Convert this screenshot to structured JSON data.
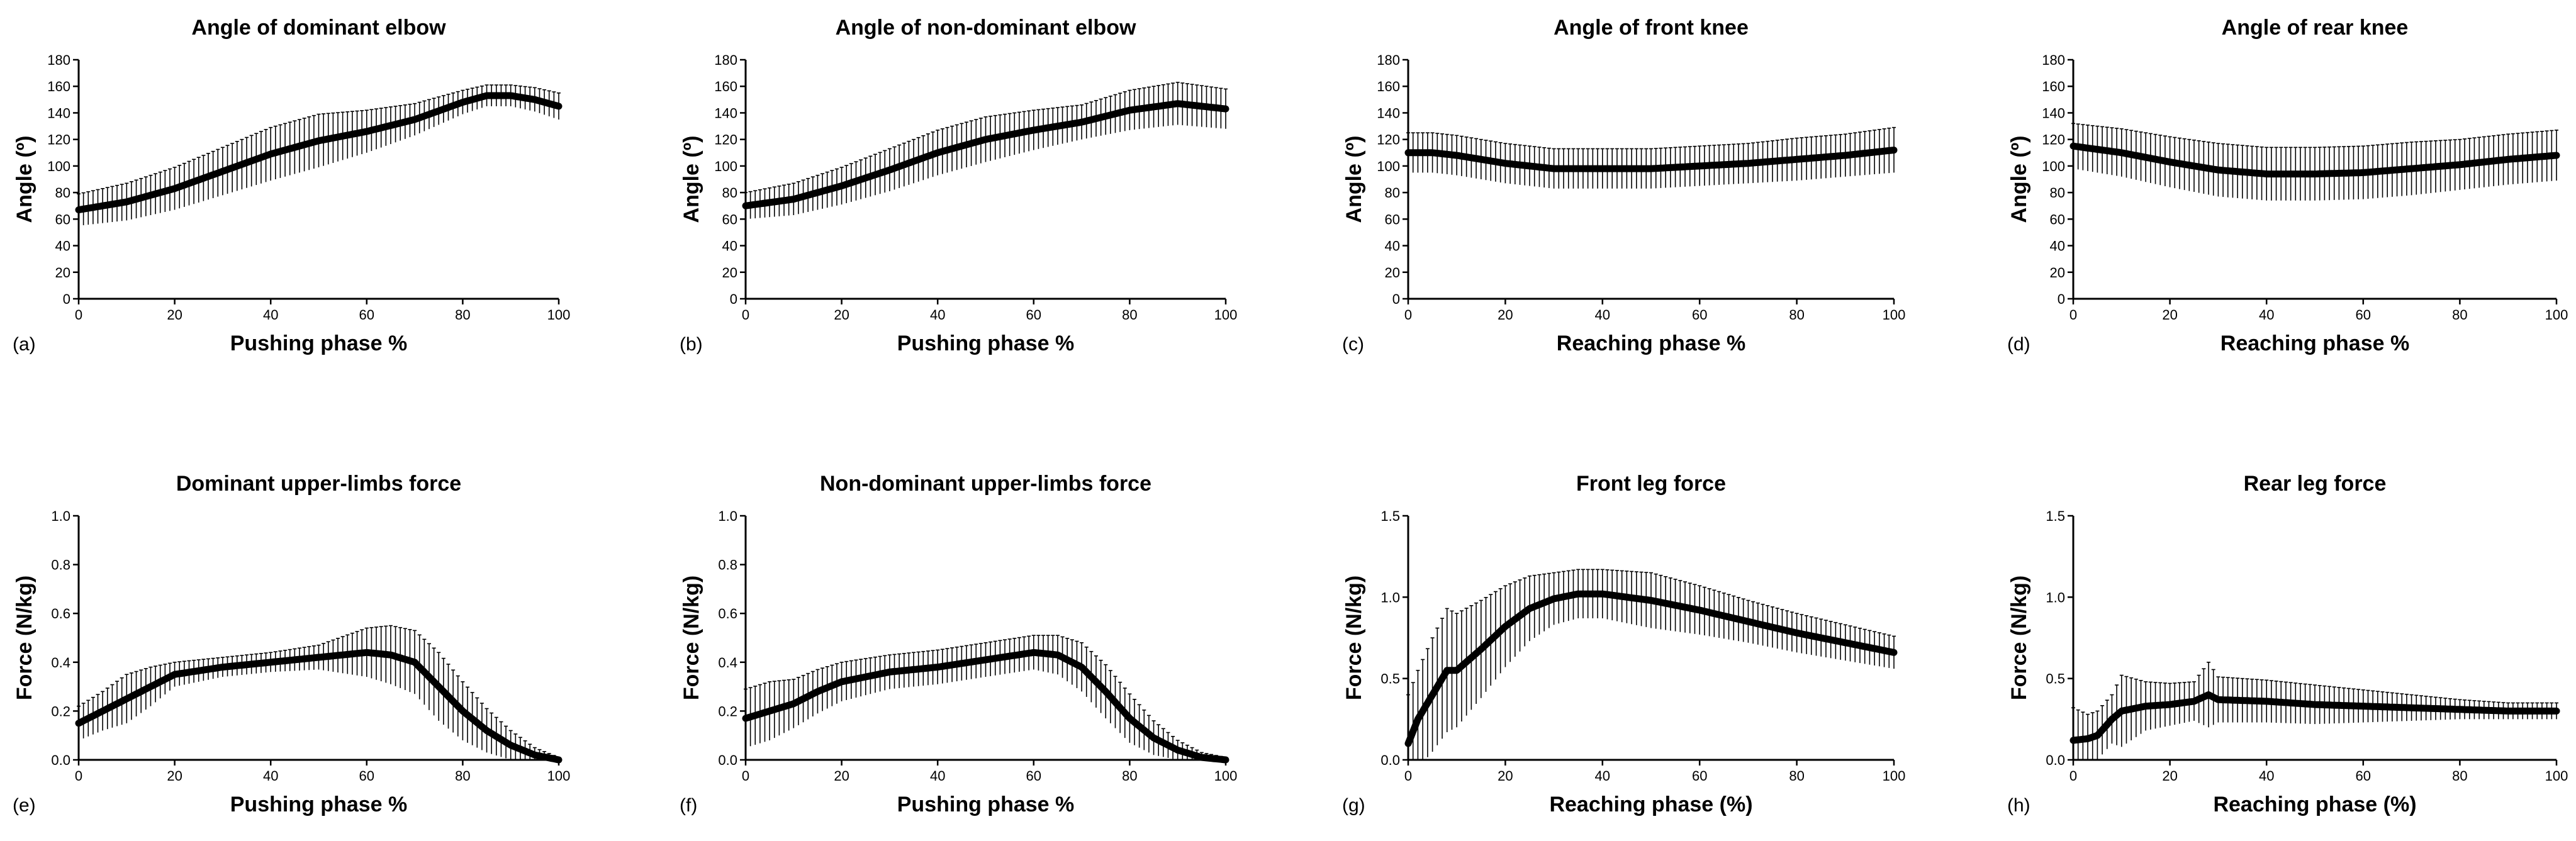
{
  "chart_data": [
    {
      "type": "line",
      "panel_label": "(a)",
      "title": "Angle of dominant elbow",
      "xlabel": "Pushing phase %",
      "ylabel": "Angle (º)",
      "xlim": [
        0,
        100
      ],
      "ylim": [
        0,
        180
      ],
      "xticks": [
        0,
        20,
        40,
        60,
        80,
        100
      ],
      "yticks": [
        0,
        20,
        40,
        60,
        80,
        100,
        120,
        140,
        160,
        180
      ],
      "x": [
        0,
        10,
        20,
        30,
        40,
        50,
        60,
        70,
        80,
        85,
        90,
        95,
        100
      ],
      "mean": [
        67,
        73,
        83,
        96,
        109,
        119,
        126,
        135,
        148,
        153,
        153,
        150,
        145
      ],
      "sd": [
        12,
        14,
        16,
        18,
        20,
        20,
        16,
        12,
        9,
        8,
        8,
        9,
        10
      ]
    },
    {
      "type": "line",
      "panel_label": "(b)",
      "title": "Angle of non-dominant elbow",
      "xlabel": "Pushing phase %",
      "ylabel": "Angle (º)",
      "xlim": [
        0,
        100
      ],
      "ylim": [
        0,
        180
      ],
      "xticks": [
        0,
        20,
        40,
        60,
        80,
        100
      ],
      "yticks": [
        0,
        20,
        40,
        60,
        80,
        100,
        120,
        140,
        160,
        180
      ],
      "x": [
        0,
        10,
        20,
        30,
        40,
        50,
        60,
        70,
        80,
        90,
        100
      ],
      "mean": [
        70,
        75,
        85,
        97,
        110,
        120,
        127,
        133,
        142,
        147,
        143
      ],
      "sd": [
        10,
        12,
        14,
        16,
        17,
        17,
        15,
        13,
        15,
        16,
        15
      ]
    },
    {
      "type": "line",
      "panel_label": "(c)",
      "title": "Angle of front knee",
      "xlabel": "Reaching phase %",
      "ylabel": "Angle (º)",
      "xlim": [
        0,
        100
      ],
      "ylim": [
        0,
        180
      ],
      "xticks": [
        0,
        20,
        40,
        60,
        80,
        100
      ],
      "yticks": [
        0,
        20,
        40,
        60,
        80,
        100,
        120,
        140,
        160,
        180
      ],
      "x": [
        0,
        5,
        10,
        20,
        30,
        40,
        50,
        60,
        70,
        80,
        90,
        100
      ],
      "mean": [
        110,
        110,
        108,
        102,
        98,
        98,
        98,
        100,
        102,
        105,
        108,
        112
      ],
      "sd": [
        15,
        15,
        15,
        15,
        15,
        15,
        15,
        15,
        15,
        16,
        16,
        17
      ]
    },
    {
      "type": "line",
      "panel_label": "(d)",
      "title": "Angle of rear knee",
      "xlabel": "Reaching phase %",
      "ylabel": "Angle (º)",
      "xlim": [
        0,
        100
      ],
      "ylim": [
        0,
        180
      ],
      "xticks": [
        0,
        20,
        40,
        60,
        80,
        100
      ],
      "yticks": [
        0,
        20,
        40,
        60,
        80,
        100,
        120,
        140,
        160,
        180
      ],
      "x": [
        0,
        10,
        20,
        30,
        40,
        50,
        60,
        70,
        80,
        90,
        100
      ],
      "mean": [
        115,
        110,
        103,
        97,
        94,
        94,
        95,
        98,
        101,
        105,
        108
      ],
      "sd": [
        17,
        18,
        19,
        20,
        20,
        20,
        20,
        20,
        19,
        19,
        19
      ]
    },
    {
      "type": "line",
      "panel_label": "(e)",
      "title": "Dominant upper-limbs force",
      "xlabel": "Pushing phase %",
      "ylabel": "Force (N/kg)",
      "xlim": [
        0,
        100
      ],
      "ylim": [
        0,
        1.0
      ],
      "xticks": [
        0,
        20,
        40,
        60,
        80,
        100
      ],
      "yticks": [
        0.0,
        0.2,
        0.4,
        0.6,
        0.8,
        1.0
      ],
      "x": [
        0,
        5,
        10,
        15,
        20,
        30,
        40,
        50,
        60,
        65,
        70,
        75,
        80,
        85,
        90,
        95,
        100
      ],
      "mean": [
        0.15,
        0.2,
        0.25,
        0.3,
        0.35,
        0.38,
        0.4,
        0.42,
        0.44,
        0.43,
        0.4,
        0.3,
        0.2,
        0.12,
        0.06,
        0.02,
        0.0
      ],
      "sd": [
        0.07,
        0.08,
        0.1,
        0.08,
        0.05,
        0.04,
        0.04,
        0.05,
        0.1,
        0.12,
        0.13,
        0.14,
        0.12,
        0.09,
        0.06,
        0.03,
        0.01
      ]
    },
    {
      "type": "line",
      "panel_label": "(f)",
      "title": "Non-dominant upper-limbs force",
      "xlabel": "Pushing phase %",
      "ylabel": "Force (N/kg)",
      "xlim": [
        0,
        100
      ],
      "ylim": [
        0,
        1.0
      ],
      "xticks": [
        0,
        20,
        40,
        60,
        80,
        100
      ],
      "yticks": [
        0.0,
        0.2,
        0.4,
        0.6,
        0.8,
        1.0
      ],
      "x": [
        0,
        5,
        10,
        15,
        20,
        30,
        40,
        50,
        60,
        65,
        70,
        75,
        80,
        85,
        90,
        95,
        100
      ],
      "mean": [
        0.17,
        0.2,
        0.23,
        0.28,
        0.32,
        0.36,
        0.38,
        0.41,
        0.44,
        0.43,
        0.38,
        0.28,
        0.17,
        0.09,
        0.04,
        0.01,
        0.0
      ],
      "sd": [
        0.12,
        0.12,
        0.1,
        0.09,
        0.08,
        0.07,
        0.07,
        0.07,
        0.07,
        0.08,
        0.1,
        0.11,
        0.1,
        0.07,
        0.04,
        0.02,
        0.01
      ]
    },
    {
      "type": "line",
      "panel_label": "(g)",
      "title": "Front leg force",
      "xlabel": "Reaching phase (%)",
      "ylabel": "Force (N/kg)",
      "xlim": [
        0,
        100
      ],
      "ylim": [
        0,
        1.5
      ],
      "xticks": [
        0,
        20,
        40,
        60,
        80,
        100
      ],
      "yticks": [
        0.0,
        0.5,
        1.0,
        1.5
      ],
      "x": [
        0,
        2,
        5,
        8,
        10,
        15,
        20,
        25,
        30,
        35,
        40,
        50,
        60,
        70,
        80,
        90,
        100
      ],
      "mean": [
        0.1,
        0.25,
        0.4,
        0.55,
        0.55,
        0.68,
        0.82,
        0.93,
        0.99,
        1.02,
        1.02,
        0.98,
        0.92,
        0.85,
        0.78,
        0.72,
        0.66
      ],
      "sd": [
        0.3,
        0.3,
        0.35,
        0.38,
        0.35,
        0.3,
        0.25,
        0.2,
        0.16,
        0.15,
        0.15,
        0.17,
        0.15,
        0.13,
        0.12,
        0.11,
        0.1
      ]
    },
    {
      "type": "line",
      "panel_label": "(h)",
      "title": "Rear leg force",
      "xlabel": "Reaching phase (%)",
      "ylabel": "Force (N/kg)",
      "xlim": [
        0,
        100
      ],
      "ylim": [
        0,
        1.5
      ],
      "xticks": [
        0,
        20,
        40,
        60,
        80,
        100
      ],
      "yticks": [
        0.0,
        0.5,
        1.0,
        1.5
      ],
      "x": [
        0,
        3,
        5,
        8,
        10,
        15,
        20,
        25,
        28,
        30,
        40,
        50,
        60,
        70,
        80,
        90,
        100
      ],
      "mean": [
        0.12,
        0.13,
        0.15,
        0.25,
        0.3,
        0.33,
        0.34,
        0.36,
        0.4,
        0.37,
        0.36,
        0.34,
        0.33,
        0.32,
        0.31,
        0.3,
        0.3
      ],
      "sd": [
        0.2,
        0.15,
        0.15,
        0.15,
        0.22,
        0.15,
        0.13,
        0.12,
        0.2,
        0.14,
        0.13,
        0.12,
        0.1,
        0.08,
        0.06,
        0.05,
        0.05
      ]
    }
  ]
}
